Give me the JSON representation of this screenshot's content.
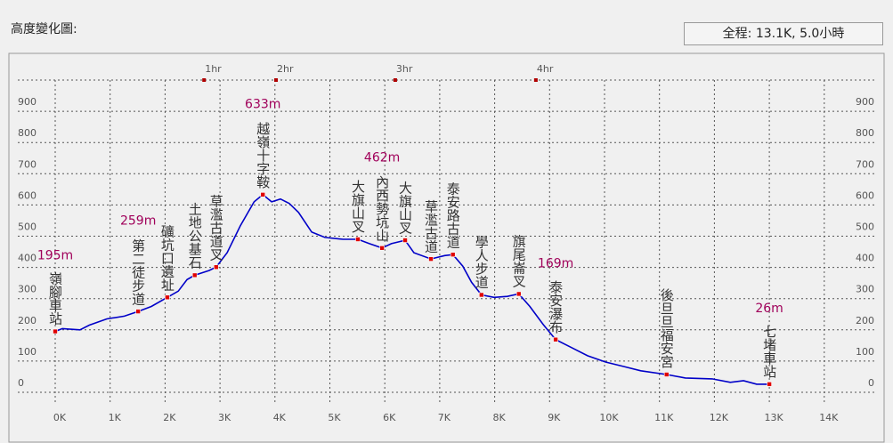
{
  "header": {
    "title": "高度變化圖:"
  },
  "chart_data": {
    "type": "line",
    "summary": "全程: 13.1K, 5.0小時",
    "xlim": [
      0,
      14
    ],
    "ylim": [
      0,
      1000
    ],
    "xticks": [
      {
        "value": 0,
        "label": "0K"
      },
      {
        "value": 1,
        "label": "1K"
      },
      {
        "value": 2,
        "label": "2K"
      },
      {
        "value": 3,
        "label": "3K"
      },
      {
        "value": 4,
        "label": "4K"
      },
      {
        "value": 5,
        "label": "5K"
      },
      {
        "value": 6,
        "label": "6K"
      },
      {
        "value": 7,
        "label": "7K"
      },
      {
        "value": 8,
        "label": "8K"
      },
      {
        "value": 9,
        "label": "9K"
      },
      {
        "value": 10,
        "label": "10K"
      },
      {
        "value": 11,
        "label": "11K"
      },
      {
        "value": 12,
        "label": "12K"
      },
      {
        "value": 13,
        "label": "13K"
      },
      {
        "value": 14,
        "label": "14K"
      }
    ],
    "yticks": [
      0,
      100,
      200,
      300,
      400,
      500,
      600,
      700,
      800,
      900
    ],
    "grid": true,
    "profile": {
      "color": "#0000c8",
      "km": [
        0,
        0.13,
        0.45,
        0.62,
        0.94,
        1.26,
        1.51,
        1.75,
        2.04,
        2.24,
        2.4,
        2.54,
        2.8,
        2.93,
        3.13,
        3.37,
        3.62,
        3.78,
        3.94,
        4.1,
        4.26,
        4.43,
        4.67,
        4.91,
        5.24,
        5.51,
        5.72,
        5.95,
        6.12,
        6.37,
        6.53,
        6.84,
        7.09,
        7.24,
        7.42,
        7.58,
        7.76,
        7.99,
        8.23,
        8.44,
        8.64,
        8.88,
        9.11,
        9.37,
        9.69,
        10.02,
        10.34,
        10.66,
        11.13,
        11.47,
        11.96,
        12.29,
        12.53,
        12.77,
        13.0
      ],
      "elev": [
        195,
        204,
        200,
        215,
        235,
        244,
        259,
        275,
        304,
        324,
        361,
        375,
        390,
        401,
        447,
        533,
        610,
        633,
        610,
        619,
        605,
        576,
        513,
        496,
        490,
        490,
        476,
        462,
        476,
        487,
        447,
        427,
        438,
        441,
        404,
        352,
        312,
        304,
        307,
        315,
        275,
        218,
        169,
        146,
        117,
        97,
        83,
        69,
        57,
        46,
        43,
        32,
        37,
        26,
        26
      ]
    },
    "waypoints": [
      {
        "name": "嶺腳車站",
        "km": 0,
        "elev": 195,
        "elev_label": "195m"
      },
      {
        "name": "第二徒步道",
        "km": 1.51,
        "elev": 259,
        "elev_label": "259m"
      },
      {
        "name": "礦坑口遺址",
        "km": 2.04,
        "elev": 304
      },
      {
        "name": "土地公基石",
        "km": 2.54,
        "elev": 375
      },
      {
        "name": "草濫古道叉",
        "km": 2.93,
        "elev": 401
      },
      {
        "name": "越嶺十字鞍",
        "km": 3.78,
        "elev": 633,
        "elev_label": "633m"
      },
      {
        "name": "大旗山叉",
        "km": 5.51,
        "elev": 490
      },
      {
        "name": "內西勢坑山",
        "km": 5.95,
        "elev": 462,
        "elev_label": "462m"
      },
      {
        "name": "大旗山叉",
        "km": 6.37,
        "elev": 487
      },
      {
        "name": "草濫古道",
        "km": 6.84,
        "elev": 427
      },
      {
        "name": "泰安路古道",
        "km": 7.24,
        "elev": 441
      },
      {
        "name": "學人步道",
        "km": 7.76,
        "elev": 312
      },
      {
        "name": "旗尾崙叉",
        "km": 8.44,
        "elev": 315
      },
      {
        "name": "泰安瀑布",
        "km": 9.11,
        "elev": 169,
        "elev_label": "169m"
      },
      {
        "name": "後旦旦福安宮",
        "km": 11.13,
        "elev": 57
      },
      {
        "name": "七堵車站",
        "km": 13.0,
        "elev": 26,
        "elev_label": "26m"
      }
    ],
    "time_marks": [
      {
        "label": "1hr",
        "km": 2.71
      },
      {
        "label": "2hr",
        "km": 4.02
      },
      {
        "label": "3hr",
        "km": 6.19
      },
      {
        "label": "4hr",
        "km": 8.75
      }
    ]
  }
}
